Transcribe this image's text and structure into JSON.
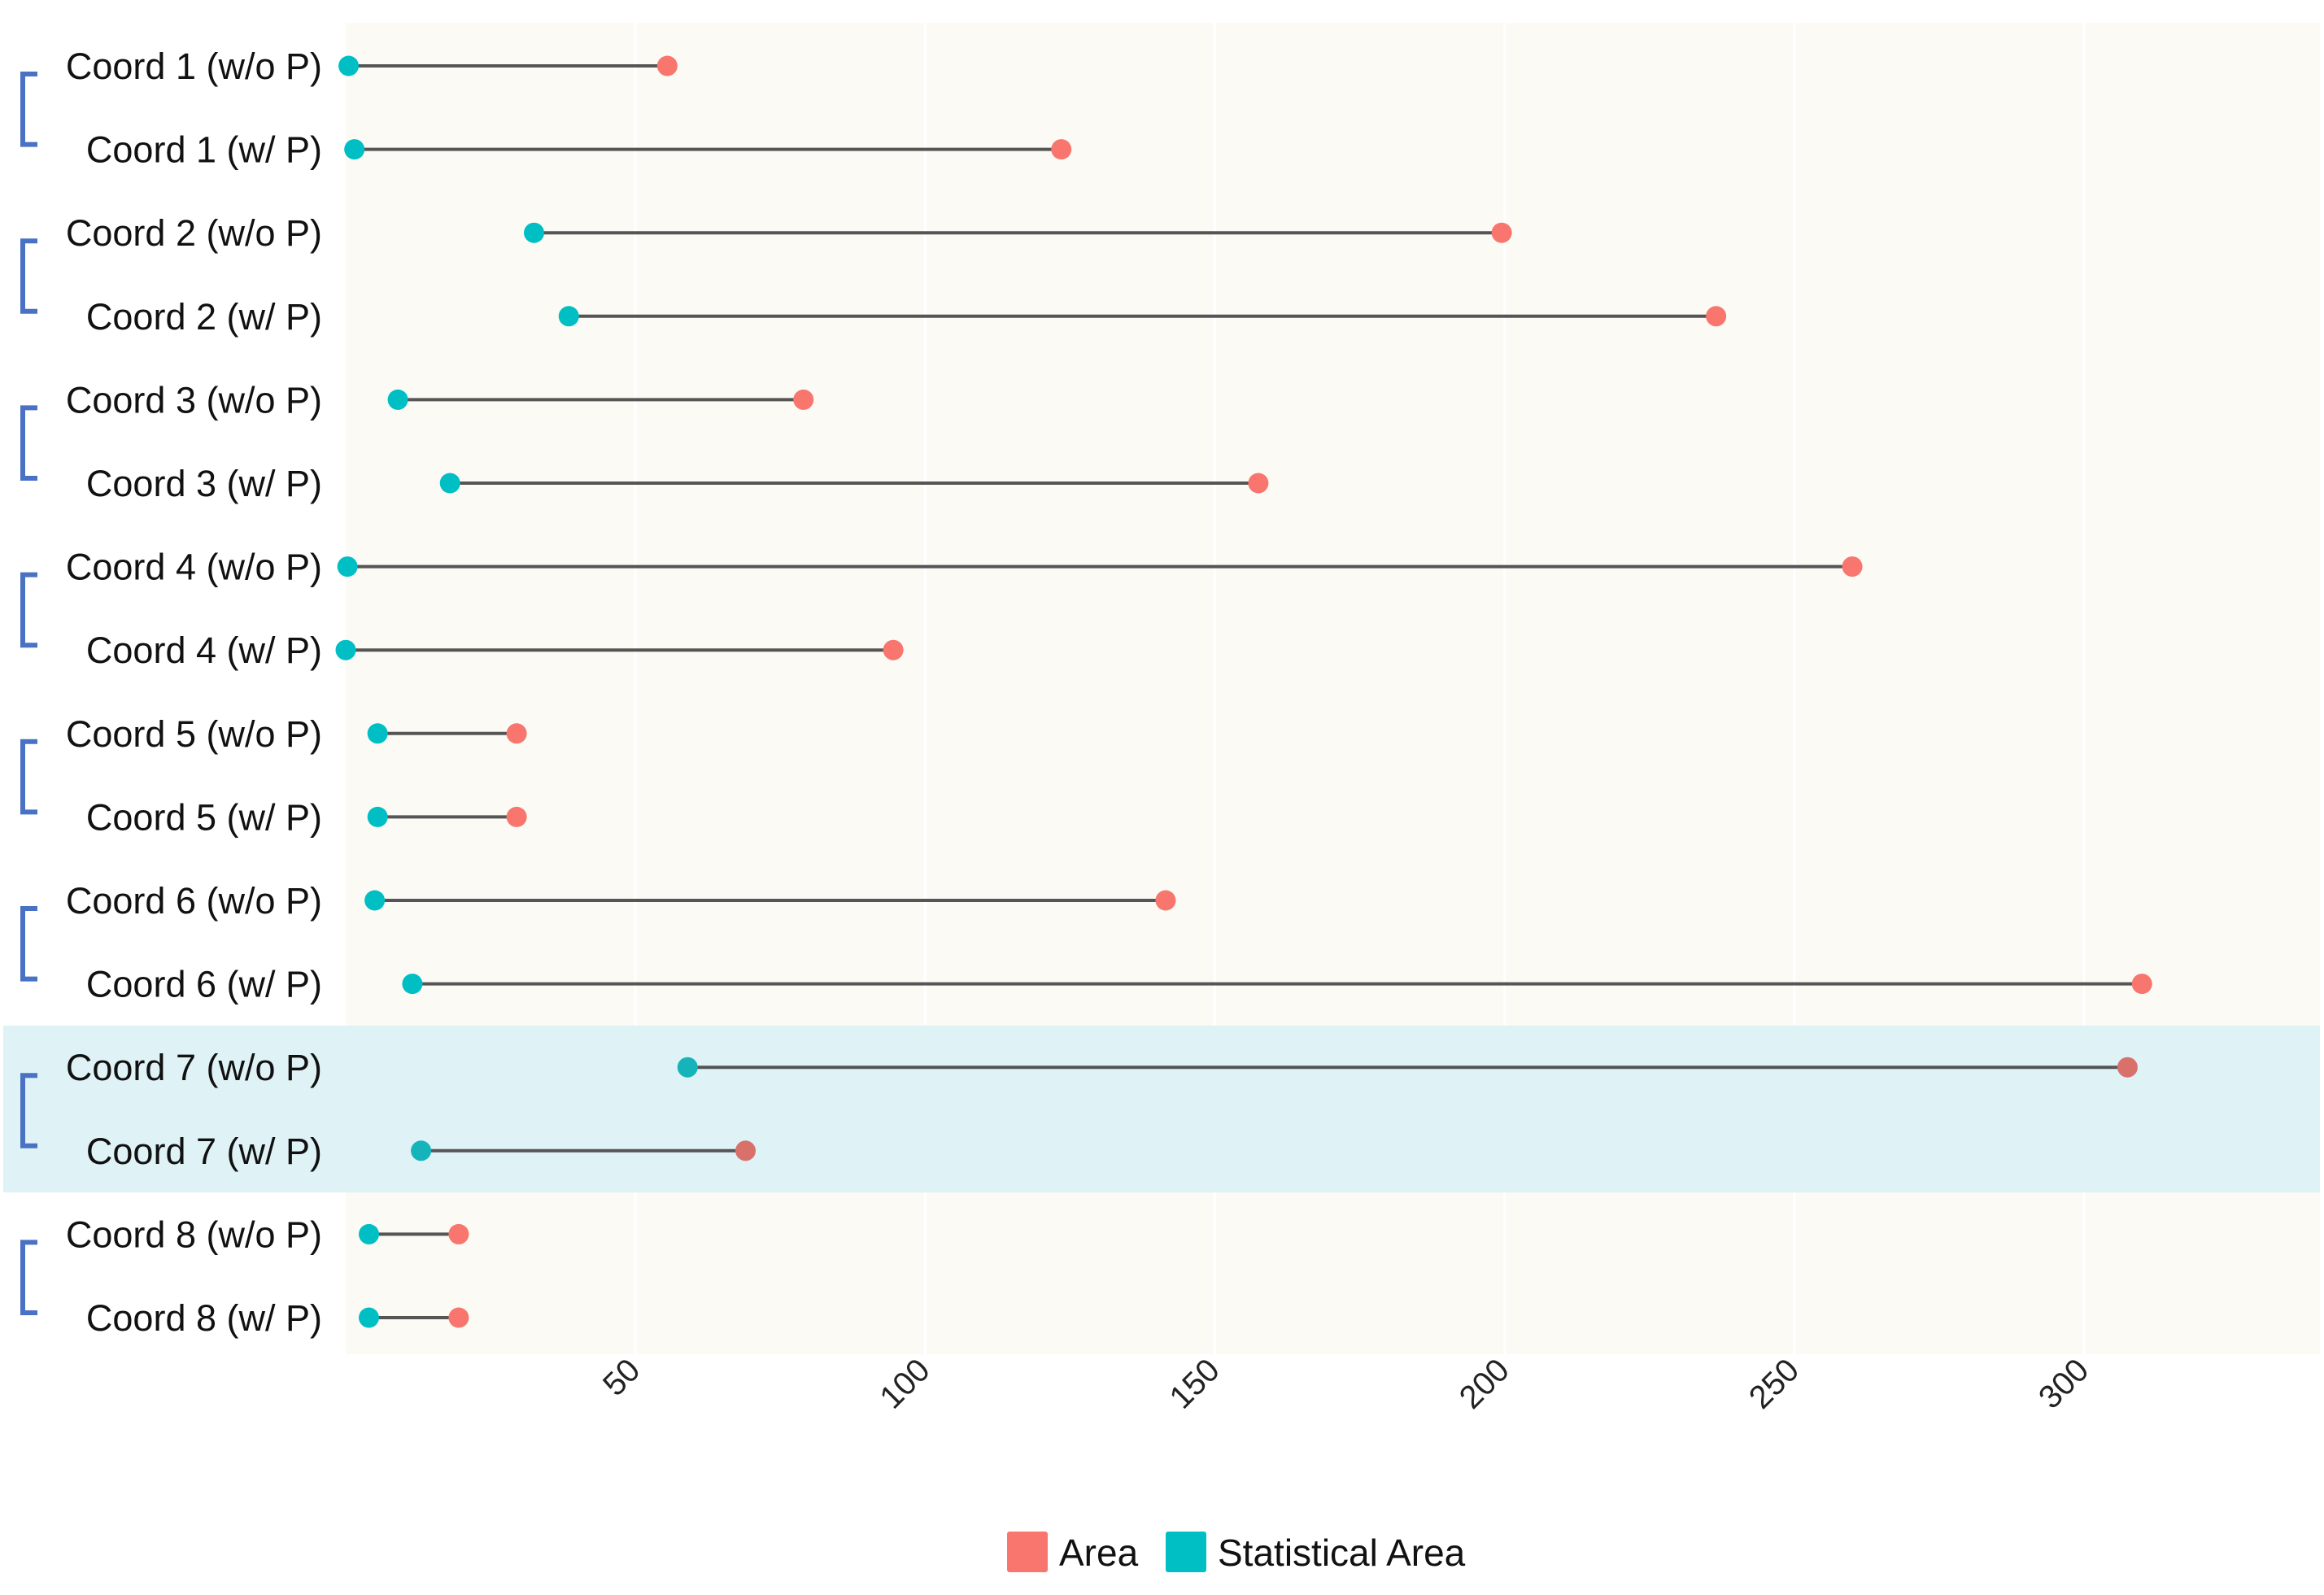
{
  "chart_data": {
    "type": "dumbbell",
    "title": "",
    "xlabel": "",
    "ylabel": "",
    "xlim": [
      0,
      340
    ],
    "x_ticks": [
      50,
      100,
      150,
      200,
      250,
      300
    ],
    "grid": true,
    "legend_position": "bottom",
    "series": [
      {
        "name": "Area",
        "color": "#F8766D"
      },
      {
        "name": "Statistical Area",
        "color": "#00BFC4"
      }
    ],
    "rows": [
      {
        "label": "Coord 1 (w/o P)",
        "statistical_area": 0.5,
        "area": 55.5
      },
      {
        "label": "Coord 1 (w/ P)",
        "statistical_area": 1.5,
        "area": 123.5
      },
      {
        "label": "Coord 2 (w/o P)",
        "statistical_area": 32.5,
        "area": 199.5
      },
      {
        "label": "Coord 2 (w/ P)",
        "statistical_area": 38.5,
        "area": 236.5
      },
      {
        "label": "Coord 3 (w/o P)",
        "statistical_area": 9,
        "area": 79
      },
      {
        "label": "Coord 3 (w/ P)",
        "statistical_area": 18,
        "area": 157.5
      },
      {
        "label": "Coord 4 (w/o P)",
        "statistical_area": 0.3,
        "area": 260
      },
      {
        "label": "Coord 4 (w/ P)",
        "statistical_area": 0,
        "area": 94.5
      },
      {
        "label": "Coord 5 (w/o P)",
        "statistical_area": 5.5,
        "area": 29.5
      },
      {
        "label": "Coord 5 (w/ P)",
        "statistical_area": 5.5,
        "area": 29.5
      },
      {
        "label": "Coord 6 (w/o P)",
        "statistical_area": 5,
        "area": 141.5
      },
      {
        "label": "Coord 6 (w/ P)",
        "statistical_area": 11.5,
        "area": 310
      },
      {
        "label": "Coord 7 (w/o P)",
        "statistical_area": 59,
        "area": 307.5
      },
      {
        "label": "Coord 7 (w/ P)",
        "statistical_area": 13,
        "area": 69
      },
      {
        "label": "Coord 8 (w/o P)",
        "statistical_area": 4,
        "area": 19.5
      },
      {
        "label": "Coord 8 (w/ P)",
        "statistical_area": 4,
        "area": 19.5
      }
    ],
    "highlighted_group": "Coord 7",
    "colors": {
      "panel_background": "#FBFAF5",
      "highlight_band": "#DFF2F6",
      "connector": "#555555",
      "bracket": "#4A72C4",
      "grid": "#FFFFFF"
    }
  }
}
